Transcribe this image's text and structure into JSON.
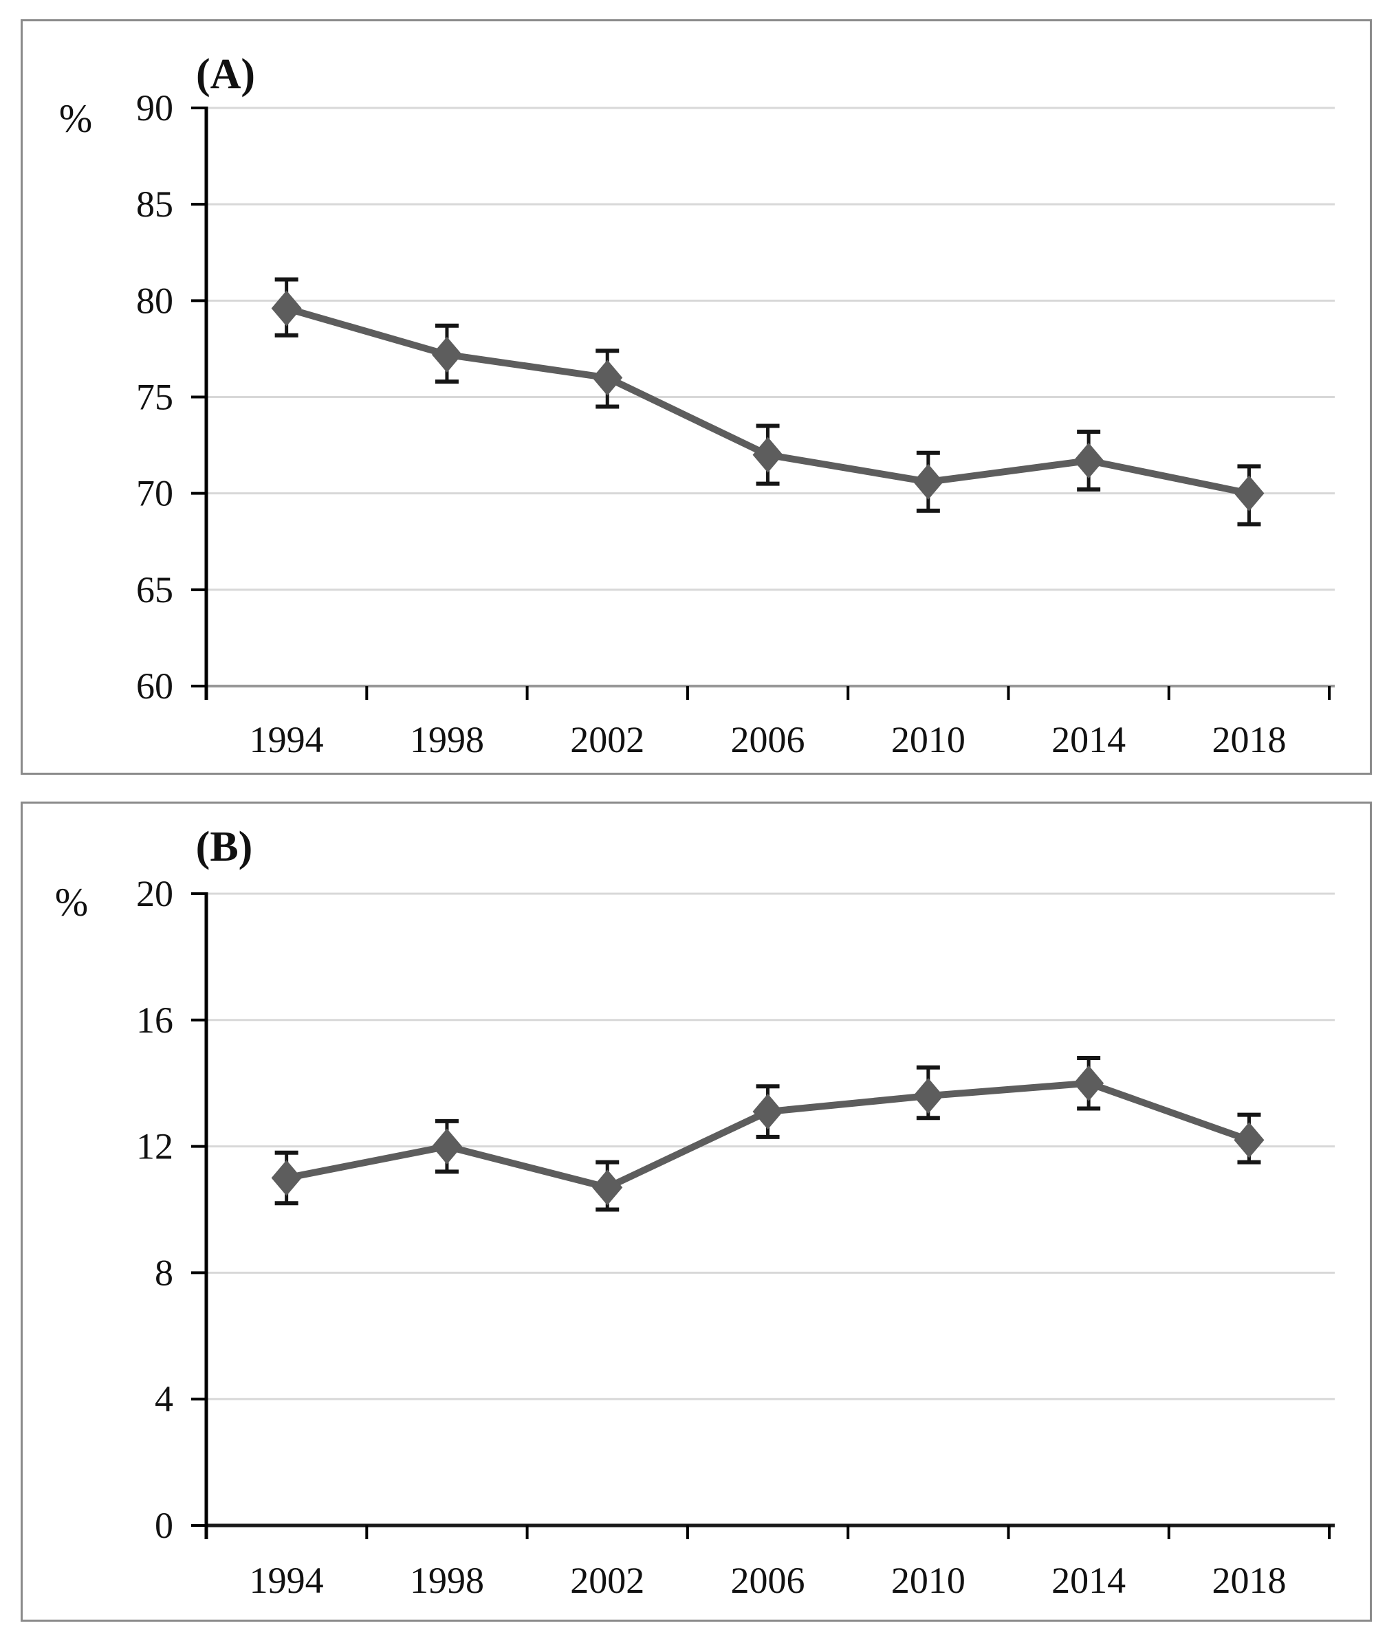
{
  "figure": {
    "background": "#ffffff",
    "panel_border_color": "#8a8a8a"
  },
  "chart_data": [
    {
      "type": "line",
      "panel": "A",
      "title": "(A)",
      "ylabel": "%",
      "categories": [
        "1994",
        "1998",
        "2002",
        "2006",
        "2010",
        "2014",
        "2018"
      ],
      "series": [
        {
          "name": "percentage",
          "values": [
            79.6,
            77.2,
            76.0,
            72.0,
            70.6,
            71.7,
            70.0
          ],
          "error_high": [
            81.1,
            78.7,
            77.4,
            73.5,
            72.1,
            73.2,
            71.4
          ],
          "error_low": [
            78.2,
            75.8,
            74.5,
            70.5,
            69.1,
            70.2,
            68.4
          ]
        }
      ],
      "ylim": [
        60,
        90
      ],
      "ytick_step": 5,
      "ytick_labels": [
        "90",
        "85",
        "80",
        "75",
        "70",
        "65",
        "60"
      ],
      "grid": true,
      "legend": "none",
      "marker": "diamond",
      "colors": {
        "line": "#5d5d5d",
        "marker": "#5d5d5d",
        "error_bar": "#151515",
        "gridline": "#d8d8d8",
        "axis": "#000000",
        "baseline": "#979797"
      }
    },
    {
      "type": "line",
      "panel": "B",
      "title": "(B)",
      "ylabel": "%",
      "categories": [
        "1994",
        "1998",
        "2002",
        "2006",
        "2010",
        "2014",
        "2018"
      ],
      "series": [
        {
          "name": "percentage",
          "values": [
            11.0,
            12.0,
            10.7,
            13.1,
            13.6,
            14.0,
            12.2
          ],
          "error_high": [
            11.8,
            12.8,
            11.5,
            13.9,
            14.5,
            14.8,
            13.0
          ],
          "error_low": [
            10.2,
            11.2,
            10.0,
            12.3,
            12.9,
            13.2,
            11.5
          ]
        }
      ],
      "ylim": [
        0,
        20
      ],
      "ytick_step": 4,
      "ytick_labels": [
        "20",
        "16",
        "12",
        "8",
        "4",
        "0"
      ],
      "grid": true,
      "legend": "none",
      "marker": "diamond",
      "colors": {
        "line": "#5d5d5d",
        "marker": "#5d5d5d",
        "error_bar": "#151515",
        "gridline": "#d8d8d8",
        "axis": "#000000",
        "baseline": "#1a1a1a"
      }
    }
  ]
}
